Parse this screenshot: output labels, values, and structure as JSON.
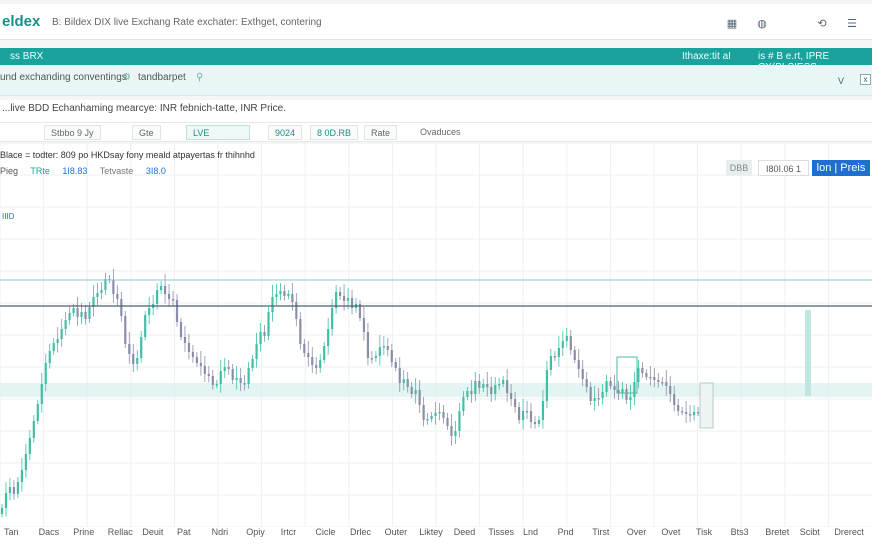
{
  "app": {
    "logo": "eldex",
    "breadcrumb": "B: Bildex DIX live Exchang Rate exchater: Exthget, contering"
  },
  "topbar_icons": [
    "grid-icon",
    "globe-icon",
    "alert-icon",
    "menu-icon"
  ],
  "tealbar": {
    "left": "ss BRX",
    "right1": "Ithaxe:tit  aI",
    "right2": "is  # B  e.rt, IPRE  CX(BLSIESS"
  },
  "subbar": {
    "label1": "und exchanding conventings",
    "label2": "tandbarpet",
    "caret": "V",
    "box": "x"
  },
  "title": "...live BDD Echanhaming mearcye: INR febnich-tatte,  INR Price.",
  "toolbar": {
    "b1": "Stbbo 9 Jy",
    "b2": "Gte",
    "b3": "LVE",
    "b4": "9024",
    "b5": "8 0D.RB",
    "b6": "Rate",
    "b7": "Ovaduces"
  },
  "info": {
    "line1": "Blace = todter:  809 po  HKDsay fony meald atpayertas fr thihnhd",
    "line2": [
      "Pieg",
      "TRte",
      "1I8.83",
      "Tetvaste",
      "3I8.0"
    ]
  },
  "pills": {
    "gray": "DBB",
    "value": "I80I.06 1",
    "blue": "lon | Preis"
  },
  "ylabel": "IIID",
  "x_labels": [
    "Tan",
    "Dacs",
    "Prine",
    "Rellac",
    "Deuit",
    "Pat",
    "Ndri",
    "Opiy",
    "Irtcr",
    "Cicle",
    "Drlec",
    "Outer",
    "Liktey",
    "Deed",
    "Tisses",
    "Lnd",
    "Pnd",
    "Tirst",
    "Over",
    "Ovet",
    "Tisk",
    "Bts3",
    "Bretet",
    "Scibt",
    "Drerect"
  ],
  "colors": {
    "bull": "#3fbfa5",
    "bear": "#8b8ea8",
    "teal": "#1aa39c",
    "blue": "#1f6fd1"
  },
  "chart_data": {
    "type": "candlestick",
    "closes": [
      508,
      493,
      487,
      494,
      482,
      470,
      454,
      438,
      421,
      404,
      384,
      363,
      351,
      343,
      339,
      329,
      320,
      313,
      308,
      317,
      312,
      319,
      307,
      297,
      293,
      290,
      279,
      280,
      294,
      299,
      316,
      344,
      354,
      364,
      358,
      337,
      315,
      308,
      304,
      290,
      286,
      294,
      299,
      300,
      322,
      337,
      343,
      352,
      357,
      363,
      366,
      374,
      376,
      385,
      384,
      371,
      367,
      369,
      380,
      378,
      383,
      384,
      368,
      359,
      344,
      332,
      336,
      312,
      297,
      294,
      291,
      296,
      294,
      302,
      319,
      344,
      353,
      357,
      365,
      368,
      360,
      346,
      329,
      308,
      292,
      296,
      301,
      298,
      308,
      304,
      318,
      332,
      358,
      358,
      356,
      347,
      346,
      350,
      362,
      368,
      383,
      379,
      387,
      394,
      390,
      405,
      420,
      419,
      416,
      413,
      412,
      418,
      426,
      436,
      431,
      411,
      397,
      391,
      394,
      381,
      388,
      384,
      387,
      394,
      385,
      384,
      380,
      393,
      399,
      407,
      420,
      411,
      411,
      422,
      424,
      420,
      401,
      370,
      356,
      357,
      348,
      341,
      336,
      350,
      360,
      369,
      379,
      387,
      401,
      398,
      398,
      392,
      381,
      386,
      390,
      393,
      389,
      400,
      397,
      382,
      368,
      373,
      377,
      377,
      380,
      382,
      382,
      386,
      394,
      405,
      411,
      412,
      414,
      415,
      412,
      412,
      410,
      409,
      416
    ]
  }
}
